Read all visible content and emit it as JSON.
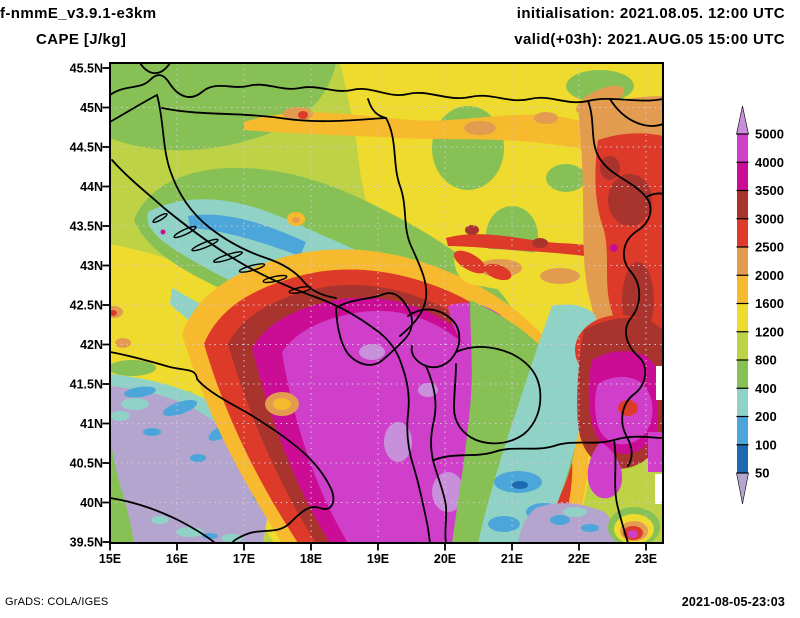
{
  "header": {
    "model": "f-nmmE_v3.9.1-e3km",
    "variable": "CAPE [J/kg]",
    "init": "initialisation: 2021.08.05. 12:00 UTC",
    "valid": "valid(+03h): 2021.AUG.05 15:00 UTC"
  },
  "footer": {
    "generator": "GrADS: COLA/IGES",
    "timestamp": "2021-08-05-23:03"
  },
  "chart_data": {
    "type": "filled-contour-map",
    "variable": "CAPE",
    "units": "J/kg",
    "lat_tick_labels": [
      "45.5N",
      "45N",
      "44.5N",
      "44N",
      "43.5N",
      "43N",
      "42.5N",
      "42N",
      "41.5N",
      "41N",
      "40.5N",
      "40N",
      "39.5N"
    ],
    "lon_tick_labels": [
      "15E",
      "16E",
      "17E",
      "18E",
      "19E",
      "20E",
      "21E",
      "22E",
      "23E"
    ],
    "levels": [
      50,
      100,
      200,
      400,
      800,
      1200,
      1600,
      2000,
      2500,
      3000,
      3500,
      4000,
      5000
    ],
    "palette": {
      "under": "#b3a5ce",
      "bands": [
        "#1d6ab1",
        "#4da6d9",
        "#90d2c6",
        "#87c155",
        "#bdd245",
        "#efdb2d",
        "#f7ba2e",
        "#e39c4f",
        "#dd3a29",
        "#a8342d",
        "#cb0d95",
        "#cf3fca"
      ],
      "over": "#c890da"
    },
    "gridline_color": "#d6c6d8",
    "border_color": "#000000",
    "legend_position": "right"
  }
}
